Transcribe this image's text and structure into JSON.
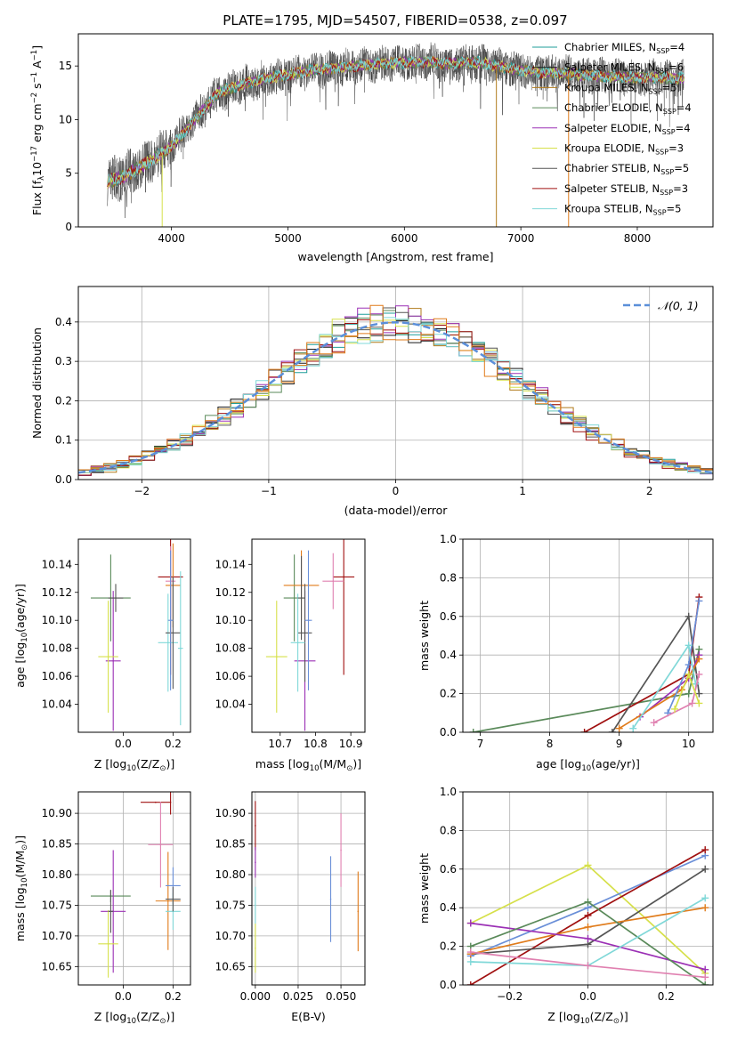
{
  "figure": {
    "title": "PLATE=1795, MJD=54507, FIBERID=0538, z=0.097"
  },
  "colors": {
    "chabrier_miles": "#1f9e9a",
    "salpeter_miles": "#1a1a1a",
    "kroupa_miles": "#b07a1a",
    "chabrier_elodie": "#5a8a5a",
    "salpeter_elodie": "#9b30b5",
    "kroupa_elodie": "#d6e04a",
    "chabrier_stelib": "#555555",
    "salpeter_stelib": "#a01010",
    "kroupa_stelib": "#80d8d8",
    "gaussian": "#5b8fd9",
    "orange": "#e07b1a",
    "pink": "#e080b0",
    "blue": "#6a8fd8"
  },
  "chart_data": [
    {
      "id": "spectrum",
      "type": "line",
      "title": "PLATE=1795, MJD=54507, FIBERID=0538, z=0.097",
      "xlabel": "wavelength [Angstrom, rest frame]",
      "ylabel_parts": [
        "Flux [f",
        "λ",
        "10",
        "−17",
        " erg cm",
        "−2",
        " s",
        "−1",
        " A",
        "−1",
        "]"
      ],
      "xlim": [
        3200,
        8650
      ],
      "ylim": [
        0,
        18
      ],
      "xticks": [
        4000,
        5000,
        6000,
        7000,
        8000
      ],
      "yticks": [
        0,
        5,
        10,
        15
      ],
      "continuum_x": [
        3450,
        3600,
        3800,
        4000,
        4200,
        4400,
        4600,
        4800,
        5000,
        5200,
        5400,
        5600,
        5800,
        6000,
        6200,
        6400,
        6600,
        6800,
        7000,
        7200,
        7400,
        7600,
        7800,
        8000,
        8200,
        8400
      ],
      "continuum_y": [
        4.2,
        4.8,
        6.0,
        7.5,
        10.0,
        12.5,
        13.3,
        13.8,
        14.2,
        14.6,
        14.8,
        15.0,
        15.2,
        15.3,
        15.4,
        15.2,
        15.4,
        15.0,
        14.6,
        14.4,
        14.3,
        14.1,
        14.0,
        13.9,
        13.9,
        13.9
      ],
      "spikes": [
        {
          "x": 3920,
          "y": 0,
          "color": "kroupa_elodie"
        },
        {
          "x": 6790,
          "y": 0,
          "color": "kroupa_miles"
        },
        {
          "x": 7410,
          "y": 0,
          "color": "orange"
        }
      ],
      "legend_position": "upper right",
      "legend": [
        {
          "label": "Chabrier MILES, N",
          "sub": "SSP",
          "tail": "=4",
          "color": "chabrier_miles"
        },
        {
          "label": "Salpeter MILES, N",
          "sub": "SSP",
          "tail": "=6",
          "color": "salpeter_miles"
        },
        {
          "label": "Kroupa MILES, N",
          "sub": "SSP",
          "tail": "=5",
          "color": "kroupa_miles"
        },
        {
          "label": "Chabrier ELODIE, N",
          "sub": "SSP",
          "tail": "=4",
          "color": "chabrier_elodie"
        },
        {
          "label": "Salpeter ELODIE, N",
          "sub": "SSP",
          "tail": "=4",
          "color": "salpeter_elodie"
        },
        {
          "label": "Kroupa ELODIE, N",
          "sub": "SSP",
          "tail": "=3",
          "color": "kroupa_elodie"
        },
        {
          "label": "Chabrier STELIB, N",
          "sub": "SSP",
          "tail": "=5",
          "color": "chabrier_stelib"
        },
        {
          "label": "Salpeter STELIB, N",
          "sub": "SSP",
          "tail": "=3",
          "color": "salpeter_stelib"
        },
        {
          "label": "Kroupa STELIB, N",
          "sub": "SSP",
          "tail": "=5",
          "color": "kroupa_stelib"
        }
      ]
    },
    {
      "id": "residuals",
      "type": "step",
      "xlabel": "(data-model)/error",
      "ylabel": "Normed distribution",
      "xlim": [
        -2.5,
        2.5
      ],
      "ylim": [
        0,
        0.49
      ],
      "xticks": [
        -2,
        -1,
        0,
        1,
        2
      ],
      "xticklabels": [
        "−2",
        "−1",
        "0",
        "1",
        "2"
      ],
      "yticks": [
        0.0,
        0.1,
        0.2,
        0.3,
        0.4
      ],
      "yticklabels": [
        "0.0",
        "0.1",
        "0.2",
        "0.3",
        "0.4"
      ],
      "grid": true,
      "bin_width": 0.1,
      "x_start": -2.5,
      "bins": 50,
      "gaussian_label": "𝒩(0, 1)",
      "legend_position": "upper right",
      "series_colors": [
        "chabrier_miles",
        "salpeter_miles",
        "kroupa_miles",
        "chabrier_elodie",
        "salpeter_elodie",
        "kroupa_elodie",
        "chabrier_stelib",
        "salpeter_stelib",
        "kroupa_stelib",
        "orange"
      ]
    },
    {
      "id": "age_vs_Z",
      "type": "errorbar",
      "xlabel_parts": [
        "Z [log",
        "10",
        "(Z/Z",
        "⊙",
        ")]"
      ],
      "ylabel_parts": [
        "age  [log",
        "10",
        "(age/yr)]"
      ],
      "xlim": [
        -0.18,
        0.27
      ],
      "ylim": [
        10.02,
        10.158
      ],
      "xticks": [
        0.0,
        0.2
      ],
      "xticklabels": [
        "0.0",
        "0.2"
      ],
      "yticks": [
        10.04,
        10.06,
        10.08,
        10.1,
        10.12,
        10.14
      ],
      "yticklabels": [
        "10.04",
        "10.06",
        "10.08",
        "10.10",
        "10.12",
        "10.14"
      ],
      "points": [
        {
          "x": -0.05,
          "y": 10.116,
          "xerr": 0.08,
          "yerr": 0.031,
          "color": "chabrier_elodie"
        },
        {
          "x": -0.04,
          "y": 10.071,
          "xerr": 0.03,
          "yerr": 0.05,
          "color": "salpeter_elodie"
        },
        {
          "x": -0.06,
          "y": 10.074,
          "xerr": 0.04,
          "yerr": 0.04,
          "color": "kroupa_elodie"
        },
        {
          "x": -0.03,
          "y": 10.116,
          "xerr": 0.03,
          "yerr": 0.01,
          "color": "chabrier_stelib"
        },
        {
          "x": 0.19,
          "y": 10.131,
          "xerr": 0.05,
          "yerr": 0.07,
          "color": "salpeter_stelib"
        },
        {
          "x": 0.2,
          "y": 10.125,
          "xerr": 0.03,
          "yerr": 0.03,
          "color": "orange"
        },
        {
          "x": 0.19,
          "y": 10.128,
          "xerr": 0.02,
          "yerr": 0.025,
          "color": "pink"
        },
        {
          "x": 0.18,
          "y": 10.084,
          "xerr": 0.04,
          "yerr": 0.035,
          "color": "kroupa_stelib"
        },
        {
          "x": 0.2,
          "y": 10.091,
          "xerr": 0.03,
          "yerr": 0.04,
          "color": "chabrier_stelib"
        },
        {
          "x": 0.19,
          "y": 10.1,
          "xerr": 0.01,
          "yerr": 0.05,
          "color": "blue"
        },
        {
          "x": 0.23,
          "y": 10.08,
          "xerr": 0.01,
          "yerr": 0.055,
          "color": "kroupa_stelib"
        }
      ]
    },
    {
      "id": "age_vs_mass",
      "type": "errorbar",
      "xlabel_parts": [
        "mass [log",
        "10",
        "(M/M",
        "⊙",
        ")]"
      ],
      "xlim": [
        10.62,
        10.94
      ],
      "ylim": [
        10.02,
        10.158
      ],
      "xticks": [
        10.7,
        10.8,
        10.9
      ],
      "xticklabels": [
        "10.7",
        "10.8",
        "10.9"
      ],
      "yticks": [
        10.04,
        10.06,
        10.08,
        10.1,
        10.12,
        10.14
      ],
      "yticklabels": [
        "10.04",
        "10.06",
        "10.08",
        "10.10",
        "10.12",
        "10.14"
      ],
      "points": [
        {
          "x": 10.74,
          "y": 10.116,
          "xerr": 0.03,
          "yerr": 0.031,
          "color": "chabrier_elodie"
        },
        {
          "x": 10.77,
          "y": 10.071,
          "xerr": 0.03,
          "yerr": 0.05,
          "color": "salpeter_elodie"
        },
        {
          "x": 10.69,
          "y": 10.074,
          "xerr": 0.03,
          "yerr": 0.04,
          "color": "kroupa_elodie"
        },
        {
          "x": 10.76,
          "y": 10.125,
          "xerr": 0.05,
          "yerr": 0.025,
          "color": "orange"
        },
        {
          "x": 10.88,
          "y": 10.131,
          "xerr": 0.03,
          "yerr": 0.07,
          "color": "salpeter_stelib"
        },
        {
          "x": 10.85,
          "y": 10.128,
          "xerr": 0.03,
          "yerr": 0.02,
          "color": "pink"
        },
        {
          "x": 10.77,
          "y": 10.091,
          "xerr": 0.02,
          "yerr": 0.035,
          "color": "chabrier_stelib"
        },
        {
          "x": 10.78,
          "y": 10.1,
          "xerr": 0.01,
          "yerr": 0.05,
          "color": "blue"
        },
        {
          "x": 10.75,
          "y": 10.084,
          "xerr": 0.02,
          "yerr": 0.035,
          "color": "kroupa_stelib"
        },
        {
          "x": 10.76,
          "y": 10.116,
          "xerr": 0.01,
          "yerr": 0.03,
          "color": "chabrier_stelib"
        }
      ]
    },
    {
      "id": "weight_vs_age",
      "type": "line",
      "xlabel_parts": [
        "age  [log",
        "10",
        "(age/yr)]"
      ],
      "ylabel": "mass weight",
      "xlim": [
        6.75,
        10.35
      ],
      "ylim": [
        0,
        1.0
      ],
      "xticks": [
        7,
        8,
        9,
        10
      ],
      "yticks": [
        0.0,
        0.2,
        0.4,
        0.6,
        0.8,
        1.0
      ],
      "yticklabels": [
        "0.0",
        "0.2",
        "0.4",
        "0.6",
        "0.8",
        "1.0"
      ],
      "grid": true,
      "lines": [
        {
          "x": [
            6.9,
            10.0,
            10.15
          ],
          "y": [
            0.0,
            0.2,
            0.43
          ],
          "color": "chabrier_elodie"
        },
        {
          "x": [
            8.5,
            10.0,
            10.15
          ],
          "y": [
            0.0,
            0.3,
            0.7
          ],
          "color": "salpeter_stelib"
        },
        {
          "x": [
            8.9,
            10.0,
            10.15
          ],
          "y": [
            0.0,
            0.6,
            0.2
          ],
          "color": "chabrier_stelib"
        },
        {
          "x": [
            9.3,
            10.0,
            10.15
          ],
          "y": [
            0.08,
            0.28,
            0.4
          ],
          "color": "salpeter_elodie"
        },
        {
          "x": [
            9.0,
            9.9,
            10.15
          ],
          "y": [
            0.02,
            0.22,
            0.38
          ],
          "color": "orange"
        },
        {
          "x": [
            9.7,
            10.0,
            10.15
          ],
          "y": [
            0.1,
            0.35,
            0.68
          ],
          "color": "blue"
        },
        {
          "x": [
            9.2,
            10.0,
            10.1
          ],
          "y": [
            0.02,
            0.45,
            0.25
          ],
          "color": "kroupa_stelib"
        },
        {
          "x": [
            9.5,
            10.05,
            10.15
          ],
          "y": [
            0.05,
            0.15,
            0.3
          ],
          "color": "pink"
        },
        {
          "x": [
            9.8,
            10.0,
            10.15
          ],
          "y": [
            0.12,
            0.3,
            0.15
          ],
          "color": "kroupa_elodie"
        }
      ]
    },
    {
      "id": "mass_vs_Z",
      "type": "errorbar",
      "xlabel_parts": [
        "Z [log",
        "10",
        "(Z/Z",
        "⊙",
        ")]"
      ],
      "ylabel_parts": [
        "mass [log",
        "10",
        "(M/M",
        "⊙",
        ")]"
      ],
      "xlim": [
        -0.18,
        0.27
      ],
      "ylim": [
        10.62,
        10.935
      ],
      "xticks": [
        0.0,
        0.2
      ],
      "xticklabels": [
        "0.0",
        "0.2"
      ],
      "yticks": [
        10.65,
        10.7,
        10.75,
        10.8,
        10.85,
        10.9
      ],
      "yticklabels": [
        "10.65",
        "10.70",
        "10.75",
        "10.80",
        "10.85",
        "10.90"
      ],
      "grid": true,
      "points": [
        {
          "x": -0.05,
          "y": 10.765,
          "xerr": 0.08,
          "yerr": 0.01,
          "color": "chabrier_elodie"
        },
        {
          "x": -0.04,
          "y": 10.74,
          "xerr": 0.05,
          "yerr": 0.1,
          "color": "salpeter_elodie"
        },
        {
          "x": -0.06,
          "y": 10.687,
          "xerr": 0.04,
          "yerr": 0.055,
          "color": "kroupa_elodie"
        },
        {
          "x": -0.05,
          "y": 10.74,
          "xerr": 0.01,
          "yerr": 0.035,
          "color": "chabrier_stelib"
        },
        {
          "x": 0.13,
          "y": 10.918,
          "xerr": 0.06,
          "yerr": 0.0,
          "color": "salpeter_stelib"
        },
        {
          "x": 0.19,
          "y": 10.918,
          "xerr": 0.0,
          "yerr": 0.02,
          "color": "salpeter_stelib"
        },
        {
          "x": 0.15,
          "y": 10.849,
          "xerr": 0.05,
          "yerr": 0.07,
          "color": "pink"
        },
        {
          "x": 0.18,
          "y": 10.757,
          "xerr": 0.05,
          "yerr": 0.08,
          "color": "orange"
        },
        {
          "x": 0.2,
          "y": 10.782,
          "xerr": 0.03,
          "yerr": 0.03,
          "color": "blue"
        },
        {
          "x": 0.2,
          "y": 10.74,
          "xerr": 0.03,
          "yerr": 0.03,
          "color": "kroupa_stelib"
        },
        {
          "x": 0.2,
          "y": 10.76,
          "xerr": 0.03,
          "yerr": 0.02,
          "color": "chabrier_stelib"
        }
      ]
    },
    {
      "id": "mass_vs_ebv",
      "type": "errorbar",
      "xlabel": "E(B-V)",
      "xlim": [
        -0.002,
        0.064
      ],
      "ylim": [
        10.62,
        10.935
      ],
      "xticks": [
        0.0,
        0.025,
        0.05
      ],
      "xticklabels": [
        "0.000",
        "0.025",
        "0.050"
      ],
      "yticks": [
        10.65,
        10.7,
        10.75,
        10.8,
        10.85,
        10.9
      ],
      "yticklabels": [
        "10.65",
        "10.70",
        "10.75",
        "10.80",
        "10.85",
        "10.90"
      ],
      "grid": true,
      "points": [
        {
          "x": 0.0,
          "y": 10.88,
          "xerr": 0.0,
          "yerr": 0.04,
          "color": "salpeter_stelib"
        },
        {
          "x": 0.0,
          "y": 10.82,
          "xerr": 0.0,
          "yerr": 0.025,
          "color": "salpeter_elodie"
        },
        {
          "x": 0.0,
          "y": 10.75,
          "xerr": 0.0,
          "yerr": 0.03,
          "color": "kroupa_stelib"
        },
        {
          "x": 0.0,
          "y": 10.68,
          "xerr": 0.0,
          "yerr": 0.04,
          "color": "kroupa_elodie"
        },
        {
          "x": 0.044,
          "y": 10.76,
          "xerr": 0.0,
          "yerr": 0.07,
          "color": "blue"
        },
        {
          "x": 0.05,
          "y": 10.84,
          "xerr": 0.0,
          "yerr": 0.06,
          "color": "pink"
        },
        {
          "x": 0.06,
          "y": 10.74,
          "xerr": 0.0,
          "yerr": 0.065,
          "color": "orange"
        }
      ]
    },
    {
      "id": "weight_vs_Z",
      "type": "line",
      "xlabel_parts": [
        "Z [log",
        "10",
        "(Z/Z",
        "⊙",
        ")]"
      ],
      "ylabel": "mass weight",
      "xlim": [
        -0.32,
        0.32
      ],
      "ylim": [
        0,
        1.0
      ],
      "xticks": [
        -0.2,
        0.0,
        0.2
      ],
      "xticklabels": [
        "−0.2",
        "0.0",
        "0.2"
      ],
      "yticks": [
        0.0,
        0.2,
        0.4,
        0.6,
        0.8,
        1.0
      ],
      "yticklabels": [
        "0.0",
        "0.2",
        "0.4",
        "0.6",
        "0.8",
        "1.0"
      ],
      "grid": true,
      "lines": [
        {
          "x": [
            -0.3,
            0.0,
            0.3
          ],
          "y": [
            0.32,
            0.62,
            0.06
          ],
          "color": "kroupa_elodie"
        },
        {
          "x": [
            -0.3,
            0.0,
            0.3
          ],
          "y": [
            0.15,
            0.4,
            0.67
          ],
          "color": "blue"
        },
        {
          "x": [
            -0.3,
            0.0,
            0.3
          ],
          "y": [
            0.0,
            0.36,
            0.7
          ],
          "color": "salpeter_stelib"
        },
        {
          "x": [
            -0.3,
            0.0,
            0.3
          ],
          "y": [
            0.16,
            0.21,
            0.6
          ],
          "color": "chabrier_stelib"
        },
        {
          "x": [
            -0.3,
            0.0,
            0.3
          ],
          "y": [
            0.16,
            0.3,
            0.4
          ],
          "color": "orange"
        },
        {
          "x": [
            -0.3,
            0.0,
            0.3
          ],
          "y": [
            0.32,
            0.24,
            0.08
          ],
          "color": "salpeter_elodie"
        },
        {
          "x": [
            -0.3,
            0.0,
            0.3
          ],
          "y": [
            0.2,
            0.43,
            0.0
          ],
          "color": "chabrier_elodie"
        },
        {
          "x": [
            -0.3,
            0.0,
            0.3
          ],
          "y": [
            0.12,
            0.1,
            0.45
          ],
          "color": "kroupa_stelib"
        },
        {
          "x": [
            -0.3,
            0.0,
            0.3
          ],
          "y": [
            0.17,
            0.1,
            0.04
          ],
          "color": "pink"
        }
      ]
    }
  ]
}
